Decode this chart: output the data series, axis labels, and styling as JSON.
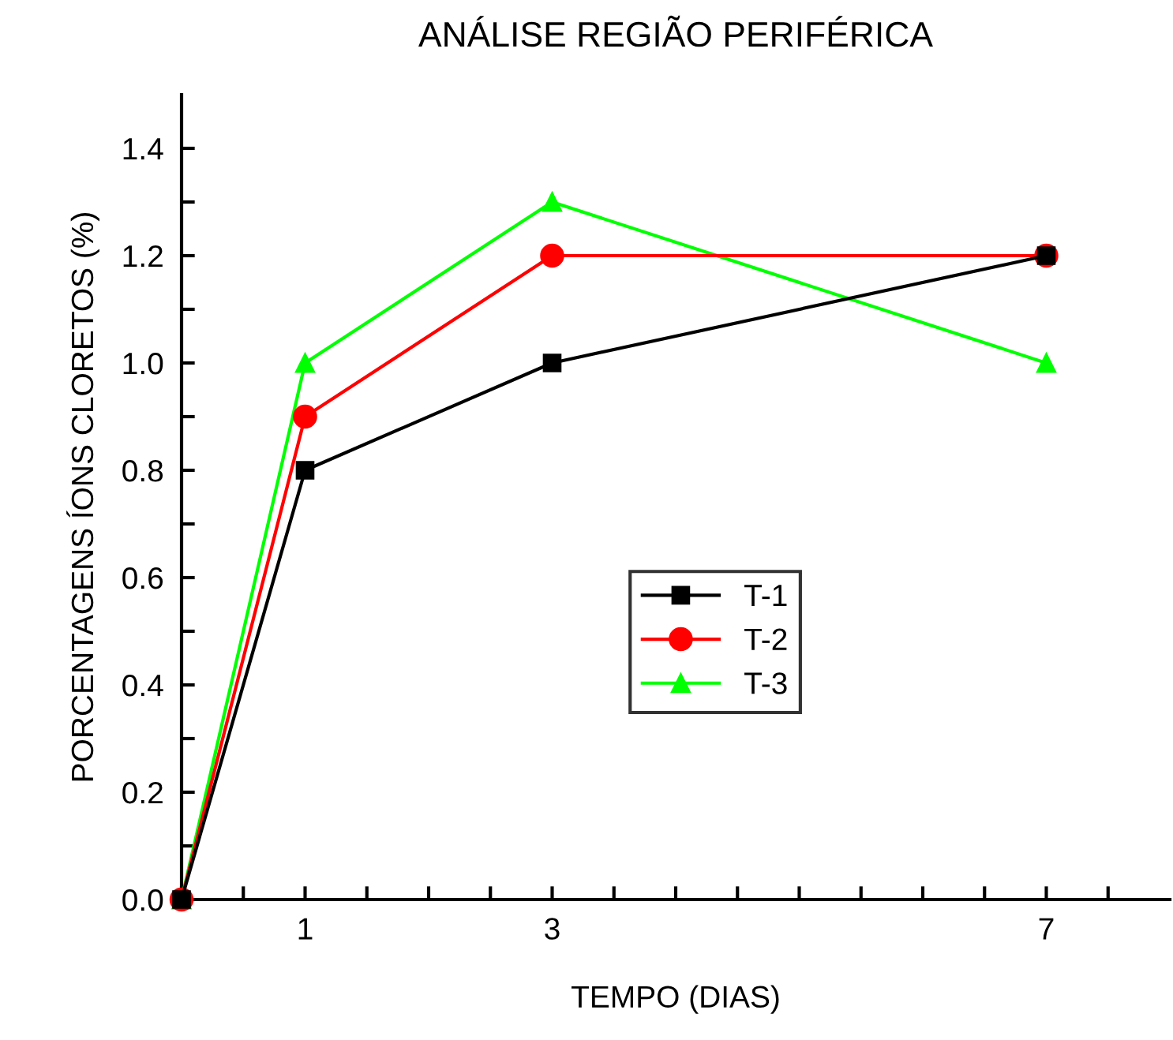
{
  "chart_data": {
    "type": "line",
    "title": "ANÁLISE REGIÃO PERIFÉRICA",
    "xlabel": "TEMPO (DIAS)",
    "ylabel": "PORCENTAGENS ÍONS CLORETOS (%)",
    "x": [
      0,
      1,
      3,
      7
    ],
    "series": [
      {
        "name": "T-1",
        "color": "#000000",
        "marker": "square",
        "values": [
          0,
          0.8,
          1.0,
          1.2
        ]
      },
      {
        "name": "T-2",
        "color": "#ff0000",
        "marker": "circle",
        "values": [
          0,
          0.9,
          1.2,
          1.2
        ]
      },
      {
        "name": "T-3",
        "color": "#00ff00",
        "marker": "triangle",
        "values": [
          0,
          1.0,
          1.3,
          1.0
        ]
      }
    ],
    "xlim": [
      0,
      8
    ],
    "xticks": [
      {
        "value": 0,
        "label": null
      },
      {
        "value": 0.5,
        "label": null
      },
      1,
      {
        "value": 1.5,
        "label": null
      },
      {
        "value": 2,
        "label": null
      },
      {
        "value": 2.5,
        "label": null
      },
      3,
      {
        "value": 3.5,
        "label": null
      },
      {
        "value": 4,
        "label": null
      },
      {
        "value": 4.5,
        "label": null
      },
      {
        "value": 5,
        "label": null
      },
      {
        "value": 5.5,
        "label": null
      },
      {
        "value": 6,
        "label": null
      },
      {
        "value": 6.5,
        "label": null
      },
      7,
      {
        "value": 7.5,
        "label": null
      }
    ],
    "ylim": [
      0,
      1.5
    ],
    "yticks": [
      {
        "value": 0,
        "label": "0.0"
      },
      {
        "value": 0.1,
        "label": null
      },
      0.2,
      {
        "value": 0.3,
        "label": null
      },
      0.4,
      {
        "value": 0.5,
        "label": null
      },
      0.6,
      {
        "value": 0.7,
        "label": null
      },
      0.8,
      {
        "value": 0.9,
        "label": null
      },
      {
        "value": 1.0,
        "label": "1.0"
      },
      {
        "value": 1.1,
        "label": null
      },
      1.2,
      {
        "value": 1.3,
        "label": null
      },
      1.4
    ],
    "grid": false,
    "legend": "center",
    "line_style": "solid"
  }
}
